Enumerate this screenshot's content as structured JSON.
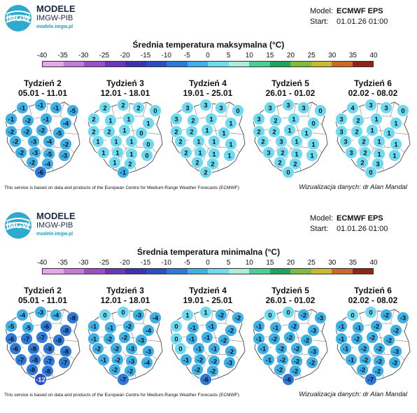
{
  "header": {
    "brand_title": "MODELE",
    "brand_sub": "IMGW-PIB",
    "brand_url": "modele.imgw.pl",
    "model_label": "Model:",
    "model_value": "ECMWF EPS",
    "start_label": "Start:",
    "start_value": "01.01.26 01:00"
  },
  "footer": {
    "source": "This service is based on data and products of the European Centre for Medium-Range Weather Forecasts (ECMWF)",
    "credit": "Wizualizacja danych: dr Alan Mandal"
  },
  "colorbar": {
    "ticks": [
      "-40",
      "-35",
      "-30",
      "-25",
      "-20",
      "-15",
      "-10",
      "-5",
      "0",
      "5",
      "10",
      "15",
      "20",
      "25",
      "30",
      "35",
      "40"
    ],
    "colors": [
      "#f3d6f2",
      "#e6a6e8",
      "#c778d8",
      "#9b4ec6",
      "#6c36b8",
      "#3d32b0",
      "#2a4fc2",
      "#2f7ad8",
      "#3fb0e6",
      "#6fd9f0",
      "#a9ecd9",
      "#49cf95",
      "#1ea75c",
      "#7dbb3d",
      "#c9b834",
      "#c96a2a",
      "#8f2418",
      "#3a0c08"
    ]
  },
  "chart_data": [
    {
      "type": "map",
      "title": "Średnia temperatura maksymalna (°C)",
      "weeks": [
        {
          "label": "Tydzień 2",
          "dates": "05.01 - 11.01",
          "values": [
            -1,
            -1,
            -1,
            -5,
            -1,
            -2,
            -1,
            -4,
            -2,
            -2,
            -2,
            -5,
            -2,
            -3,
            -4,
            -2,
            -2,
            -3,
            -5,
            -3,
            -2,
            -4,
            -6
          ]
        },
        {
          "label": "Tydzień 3",
          "dates": "12.01 - 18.01",
          "values": [
            2,
            2,
            2,
            0,
            2,
            1,
            1,
            1,
            2,
            2,
            1,
            0,
            1,
            1,
            1,
            0,
            1,
            1,
            1,
            0,
            1,
            2,
            -1
          ]
        },
        {
          "label": "Tydzień 4",
          "dates": "19.01 - 25.01",
          "values": [
            3,
            3,
            3,
            0,
            3,
            2,
            1,
            1,
            2,
            2,
            1,
            1,
            2,
            1,
            1,
            1,
            2,
            1,
            1,
            1,
            2,
            2,
            2
          ]
        },
        {
          "label": "Tydzień 5",
          "dates": "26.01 - 01.02",
          "values": [
            3,
            3,
            3,
            0,
            3,
            2,
            1,
            0,
            2,
            2,
            1,
            1,
            2,
            3,
            1,
            1,
            3,
            2,
            1,
            1,
            2,
            2,
            0
          ]
        },
        {
          "label": "Tydzień 6",
          "dates": "02.02 - 08.02",
          "values": [
            4,
            3,
            3,
            0,
            3,
            2,
            1,
            1,
            3,
            2,
            1,
            1,
            3,
            2,
            1,
            1,
            3,
            2,
            1,
            1,
            2,
            3,
            0
          ]
        }
      ]
    },
    {
      "type": "map",
      "title": "Średnia temperatura minimalna (°C)",
      "weeks": [
        {
          "label": "Tydzień 2",
          "dates": "05.01 - 11.01",
          "values": [
            -4,
            -3,
            -4,
            -8,
            -5,
            -5,
            -6,
            -8,
            -6,
            -7,
            -7,
            -8,
            -6,
            -8,
            -8,
            -8,
            -7,
            -8,
            -7,
            -7,
            -8,
            -8,
            -12
          ]
        },
        {
          "label": "Tydzień 3",
          "dates": "12.01 - 18.01",
          "values": [
            0,
            0,
            -3,
            -4,
            -1,
            -1,
            -2,
            -4,
            -1,
            -2,
            -2,
            -3,
            -2,
            -2,
            -3,
            -3,
            -1,
            -2,
            -3,
            -4,
            -2,
            -2,
            -7
          ]
        },
        {
          "label": "Tydzień 4",
          "dates": "19.01 - 25.01",
          "values": [
            1,
            1,
            -2,
            -2,
            0,
            -1,
            -1,
            -2,
            0,
            -1,
            -1,
            -2,
            0,
            -1,
            -1,
            -2,
            -1,
            -2,
            -2,
            -3,
            -2,
            -2,
            -6
          ]
        },
        {
          "label": "Tydzień 5",
          "dates": "26.01 - 01.02",
          "values": [
            0,
            0,
            -2,
            -3,
            -1,
            -1,
            -2,
            -3,
            -1,
            -2,
            -2,
            -2,
            -1,
            -2,
            -2,
            -3,
            -1,
            -2,
            -2,
            -2,
            -2,
            -2,
            -6
          ]
        },
        {
          "label": "Tydzień 6",
          "dates": "02.02 - 08.02",
          "values": [
            0,
            0,
            -2,
            -3,
            -1,
            -1,
            -2,
            -2,
            -1,
            -2,
            -2,
            -2,
            -1,
            -2,
            -2,
            -3,
            -1,
            -2,
            -2,
            -2,
            -2,
            -2,
            -7
          ]
        }
      ]
    }
  ]
}
